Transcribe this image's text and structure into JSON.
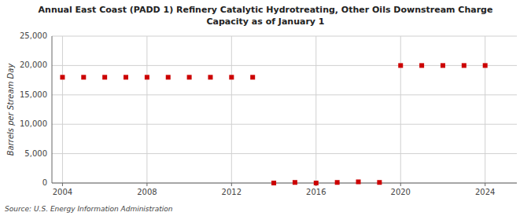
{
  "chart_data": {
    "type": "scatter",
    "title": "Annual East Coast (PADD 1) Refinery Catalytic Hydrotreating, Other Oils Downstream Charge",
    "subtitle": "Capacity as of January 1",
    "ylabel": "Barrels per Stream Day",
    "source": "Source: U.S. Energy Information Administration",
    "x": [
      2004,
      2005,
      2006,
      2007,
      2008,
      2009,
      2010,
      2011,
      2012,
      2013,
      2014,
      2015,
      2016,
      2017,
      2018,
      2019,
      2020,
      2021,
      2022,
      2023,
      2024
    ],
    "values": [
      18000,
      18000,
      18000,
      18000,
      18000,
      18000,
      18000,
      18000,
      18000,
      18000,
      0,
      100,
      0,
      100,
      200,
      100,
      20000,
      20000,
      20000,
      20000,
      20000
    ],
    "color": "#cc0000",
    "marker": "square",
    "xlim": [
      2003.5,
      2025.5
    ],
    "ylim": [
      0,
      25000
    ],
    "xticks": [
      2004,
      2008,
      2012,
      2016,
      2020,
      2024
    ],
    "yticks": [
      0,
      {
        "value": 5000,
        "label": "5,000"
      },
      {
        "value": 10000,
        "label": "10,000"
      },
      {
        "value": 15000,
        "label": "15,000"
      },
      {
        "value": 20000,
        "label": "20,000"
      },
      {
        "value": 25000,
        "label": "25,000"
      }
    ],
    "grid": true
  }
}
